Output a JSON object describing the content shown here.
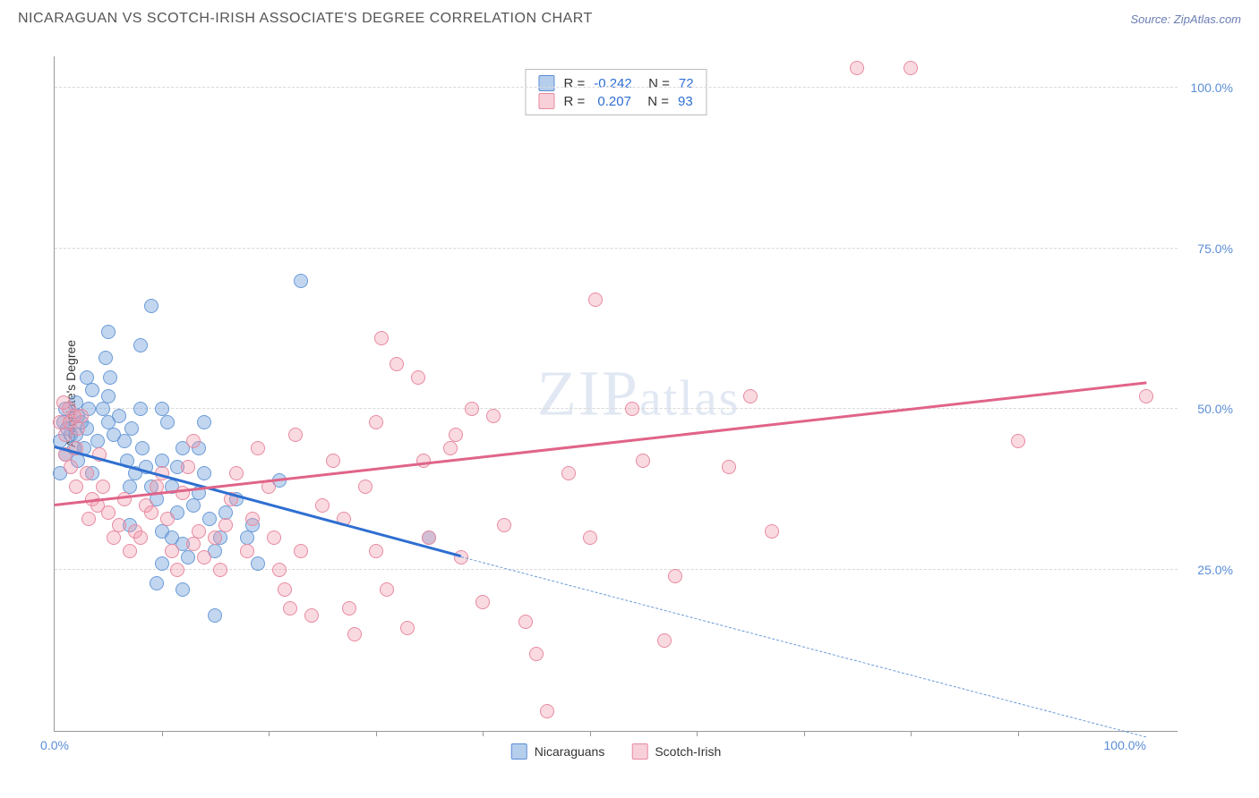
{
  "header": {
    "title": "NICARAGUAN VS SCOTCH-IRISH ASSOCIATE'S DEGREE CORRELATION CHART",
    "source": "Source: ZipAtlas.com"
  },
  "chart": {
    "type": "scatter",
    "ylabel": "Associate's Degree",
    "xlim": [
      0,
      105
    ],
    "ylim": [
      0,
      105
    ],
    "xtick_labels": {
      "0": "0.0%",
      "100": "100.0%"
    },
    "ytick_labels": {
      "25": "25.0%",
      "50": "50.0%",
      "75": "75.0%",
      "100": "100.0%"
    },
    "xtick_minor": [
      10,
      20,
      30,
      40,
      50,
      60,
      70,
      80,
      90
    ],
    "grid_color": "#d8d8d8",
    "background_color": "#ffffff",
    "axis_color": "#999999",
    "label_fontsize": 14,
    "tick_color": "#5b8dd6",
    "watermark": "ZIPatlas",
    "series": [
      {
        "name": "Nicaraguans",
        "color_fill": "rgba(120,165,220,0.45)",
        "color_stroke": "#6a9bd8",
        "trend_color": "#2e6fd1",
        "r": -0.242,
        "n": 72,
        "trend": {
          "x1": 0,
          "y1": 44,
          "x2": 38,
          "y2": 27,
          "extend_x2": 102,
          "extend_y2": -1
        },
        "points": [
          [
            0.5,
            45
          ],
          [
            0.8,
            48
          ],
          [
            1,
            50
          ],
          [
            1.2,
            47
          ],
          [
            1.5,
            46
          ],
          [
            1,
            43
          ],
          [
            0.5,
            40
          ],
          [
            1.8,
            44
          ],
          [
            2,
            46
          ],
          [
            2.2,
            49
          ],
          [
            2,
            51
          ],
          [
            2.5,
            48
          ],
          [
            3,
            47
          ],
          [
            3.2,
            50
          ],
          [
            3.5,
            53
          ],
          [
            3,
            55
          ],
          [
            2.8,
            44
          ],
          [
            2.2,
            42
          ],
          [
            3.5,
            40
          ],
          [
            4,
            45
          ],
          [
            4.5,
            50
          ],
          [
            5,
            48
          ],
          [
            5.5,
            46
          ],
          [
            5,
            52
          ],
          [
            5.2,
            55
          ],
          [
            4.8,
            58
          ],
          [
            6,
            49
          ],
          [
            6.5,
            45
          ],
          [
            6.8,
            42
          ],
          [
            7,
            38
          ],
          [
            7.5,
            40
          ],
          [
            7.2,
            47
          ],
          [
            8,
            50
          ],
          [
            8.2,
            44
          ],
          [
            8.5,
            41
          ],
          [
            9,
            38
          ],
          [
            9.5,
            36
          ],
          [
            10,
            42
          ],
          [
            10.5,
            48
          ],
          [
            10,
            31
          ],
          [
            11,
            30
          ],
          [
            11.5,
            34
          ],
          [
            12,
            29
          ],
          [
            12.5,
            27
          ],
          [
            12,
            44
          ],
          [
            9,
            66
          ],
          [
            11,
            38
          ],
          [
            11.5,
            41
          ],
          [
            13,
            35
          ],
          [
            13.5,
            37
          ],
          [
            14,
            40
          ],
          [
            14.5,
            33
          ],
          [
            15,
            28
          ],
          [
            9.5,
            23
          ],
          [
            10,
            26
          ],
          [
            7,
            32
          ],
          [
            15,
            18
          ],
          [
            15.5,
            30
          ],
          [
            16,
            34
          ],
          [
            17,
            36
          ],
          [
            18,
            30
          ],
          [
            18.5,
            32
          ],
          [
            19,
            26
          ],
          [
            12,
            22
          ],
          [
            23,
            70
          ],
          [
            5,
            62
          ],
          [
            8,
            60
          ],
          [
            13.5,
            44
          ],
          [
            14,
            48
          ],
          [
            10,
            50
          ],
          [
            21,
            39
          ],
          [
            35,
            30
          ]
        ]
      },
      {
        "name": "Scotch-Irish",
        "color_fill": "rgba(240,150,170,0.35)",
        "color_stroke": "#e88aa0",
        "trend_color": "#e06488",
        "r": 0.207,
        "n": 93,
        "trend": {
          "x1": 0,
          "y1": 35,
          "x2": 102,
          "y2": 54
        },
        "points": [
          [
            0.5,
            48
          ],
          [
            1,
            46
          ],
          [
            1.3,
            50
          ],
          [
            1,
            43
          ],
          [
            1.5,
            41
          ],
          [
            2,
            44
          ],
          [
            2.2,
            47
          ],
          [
            2.5,
            49
          ],
          [
            2,
            38
          ],
          [
            3,
            40
          ],
          [
            3.5,
            36
          ],
          [
            3.2,
            33
          ],
          [
            4,
            35
          ],
          [
            4.5,
            38
          ],
          [
            5,
            34
          ],
          [
            5.5,
            30
          ],
          [
            6,
            32
          ],
          [
            6.5,
            36
          ],
          [
            7,
            28
          ],
          [
            7.5,
            31
          ],
          [
            8,
            30
          ],
          [
            8.5,
            35
          ],
          [
            9,
            34
          ],
          [
            9.5,
            38
          ],
          [
            10,
            40
          ],
          [
            10.5,
            33
          ],
          [
            11,
            28
          ],
          [
            11.5,
            25
          ],
          [
            12,
            37
          ],
          [
            12.5,
            41
          ],
          [
            13,
            29
          ],
          [
            14,
            27
          ],
          [
            13.5,
            31
          ],
          [
            15,
            30
          ],
          [
            15.5,
            25
          ],
          [
            16,
            32
          ],
          [
            16.5,
            36
          ],
          [
            17,
            40
          ],
          [
            18,
            28
          ],
          [
            18.5,
            33
          ],
          [
            19,
            44
          ],
          [
            20,
            38
          ],
          [
            20.5,
            30
          ],
          [
            21,
            25
          ],
          [
            21.5,
            22
          ],
          [
            22,
            19
          ],
          [
            22.5,
            46
          ],
          [
            23,
            28
          ],
          [
            24,
            18
          ],
          [
            25,
            35
          ],
          [
            26,
            42
          ],
          [
            27,
            33
          ],
          [
            27.5,
            19
          ],
          [
            28,
            15
          ],
          [
            29,
            38
          ],
          [
            30,
            48
          ],
          [
            30.5,
            61
          ],
          [
            30,
            28
          ],
          [
            31,
            22
          ],
          [
            32,
            57
          ],
          [
            33,
            16
          ],
          [
            34,
            55
          ],
          [
            34.5,
            42
          ],
          [
            35,
            30
          ],
          [
            37,
            44
          ],
          [
            37.5,
            46
          ],
          [
            38,
            27
          ],
          [
            39,
            50
          ],
          [
            40,
            20
          ],
          [
            41,
            49
          ],
          [
            42,
            32
          ],
          [
            44,
            17
          ],
          [
            45,
            12
          ],
          [
            46,
            3
          ],
          [
            48,
            40
          ],
          [
            50,
            30
          ],
          [
            50.5,
            67
          ],
          [
            54,
            50
          ],
          [
            55,
            42
          ],
          [
            57,
            14
          ],
          [
            58,
            24
          ],
          [
            63,
            41
          ],
          [
            65,
            52
          ],
          [
            67,
            31
          ],
          [
            75,
            103
          ],
          [
            80,
            103
          ],
          [
            90,
            45
          ],
          [
            102,
            52
          ],
          [
            0.8,
            51
          ],
          [
            1.4,
            48
          ],
          [
            1.8,
            49
          ],
          [
            13,
            45
          ],
          [
            4.2,
            43
          ]
        ]
      }
    ],
    "bottom_legend": [
      {
        "label": "Nicaraguans",
        "swatch": "blue"
      },
      {
        "label": "Scotch-Irish",
        "swatch": "pink"
      }
    ]
  }
}
